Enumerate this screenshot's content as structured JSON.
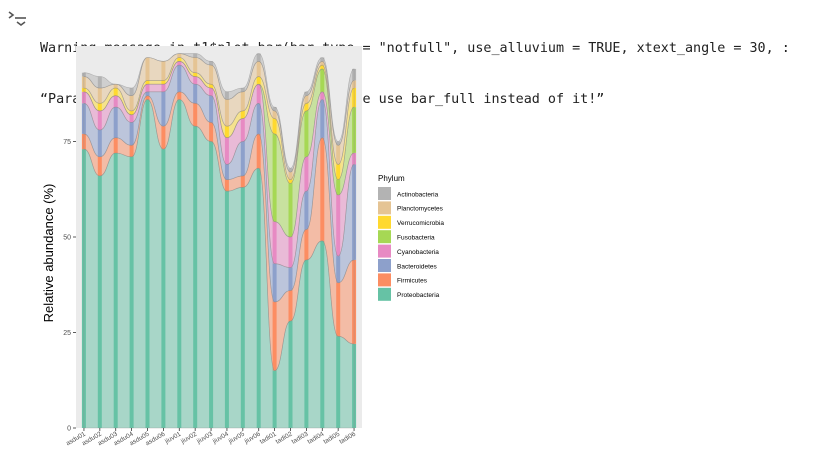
{
  "output": {
    "icon": "output-expand-icon",
    "lines": [
      "Warning message in t1$plot_bar(bar_type = \"notfull\", use_alluvium = TRUE, xtext_angle = 30, :",
      "“Parameter bar_type is deprecated! Please use bar_full instead of it!”"
    ]
  },
  "chart_data": {
    "type": "area",
    "stacked": true,
    "ylabel": "Relative abundance (%)",
    "xlabel": "",
    "ylim": [
      0,
      100
    ],
    "yticks": [
      0,
      25,
      50,
      75
    ],
    "grid": false,
    "panel_background": "#ebebeb",
    "legend": {
      "title": "Phylum",
      "position": "right"
    },
    "categories": [
      "asdu01",
      "asdu02",
      "asdu03",
      "asdu04",
      "asdu05",
      "asdu06",
      "jiuv01",
      "jiuv02",
      "jiuv03",
      "jiuv04",
      "jiuv05",
      "jiuv06",
      "tadi01",
      "tadi02",
      "tadi03",
      "tadi04",
      "tadi05",
      "tadi06"
    ],
    "series": [
      {
        "name": "Proteobacteria",
        "color": "#66c2a5",
        "values": [
          73,
          66,
          72,
          71,
          86,
          73,
          86,
          79,
          75,
          62,
          63,
          68,
          15,
          28,
          44,
          49,
          24,
          22
        ]
      },
      {
        "name": "Firmicutes",
        "color": "#fc8d62",
        "values": [
          4,
          5,
          4,
          3,
          1,
          6,
          2,
          6,
          5,
          3,
          3,
          9,
          18,
          8,
          8,
          27,
          14,
          22
        ]
      },
      {
        "name": "Bacteroidetes",
        "color": "#8da0cb",
        "values": [
          8,
          7,
          8,
          6,
          1,
          9,
          7,
          5,
          7,
          4,
          9,
          8,
          10,
          6,
          10,
          10,
          7,
          25
        ]
      },
      {
        "name": "Cyanobacteria",
        "color": "#e78ac3",
        "values": [
          3,
          5,
          3,
          2,
          2,
          2,
          1,
          2,
          2,
          7,
          6,
          5,
          11,
          8,
          9,
          2,
          16,
          3
        ]
      },
      {
        "name": "Fusobacteria",
        "color": "#a6d854",
        "values": [
          0,
          0,
          0,
          0,
          0,
          0,
          0,
          0,
          0,
          0,
          0,
          0,
          23,
          14,
          12,
          6,
          4,
          12
        ]
      },
      {
        "name": "Verrucomicrobia",
        "color": "#ffd92f",
        "values": [
          1,
          2,
          2,
          1,
          1,
          1,
          1,
          1,
          1,
          3,
          2,
          2,
          4,
          1,
          2,
          1,
          4,
          5
        ]
      },
      {
        "name": "Planctomycetes",
        "color": "#e5c494",
        "values": [
          3,
          4,
          1,
          4,
          6,
          5,
          1,
          4,
          5,
          7,
          5,
          4,
          2,
          2,
          2,
          1,
          5,
          2
        ]
      },
      {
        "name": "Actinobacteria",
        "color": "#b3b3b3",
        "values": [
          1,
          3,
          0,
          2,
          0,
          0,
          0,
          1,
          1,
          2,
          1,
          2,
          1,
          1,
          1,
          1,
          1,
          3
        ]
      }
    ]
  }
}
